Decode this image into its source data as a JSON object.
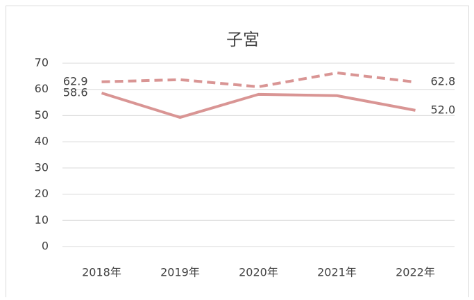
{
  "chart_data": {
    "type": "line",
    "title": "子宮",
    "categories": [
      "2018年",
      "2019年",
      "2020年",
      "2021年",
      "2022年"
    ],
    "series": [
      {
        "color": "#d99594",
        "dash": false,
        "values": [
          58.6,
          49.3,
          58.1,
          57.6,
          52.0
        ],
        "value_labels": [
          "58.6",
          null,
          null,
          null,
          "52.0"
        ]
      },
      {
        "color": "#d99594",
        "dash": true,
        "values": [
          62.9,
          63.7,
          61.0,
          66.3,
          62.8
        ],
        "value_labels": [
          "62.9",
          null,
          null,
          null,
          "62.8"
        ]
      }
    ],
    "ylim": [
      0,
      70
    ],
    "yticks": [
      0,
      10,
      20,
      30,
      40,
      50,
      60,
      70
    ],
    "grid": true
  }
}
